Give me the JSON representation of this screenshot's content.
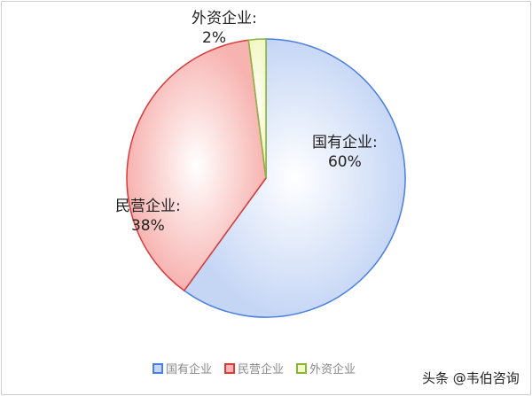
{
  "chart_data": {
    "type": "pie",
    "title": "",
    "slices": [
      {
        "label": "国有企业",
        "value": 60,
        "data_label": "国有企业:\n60%",
        "color": "#4a7fe0",
        "fill": "#c5d6f5"
      },
      {
        "label": "民营企业",
        "value": 38,
        "data_label": "民营企业:\n38%",
        "color": "#d93a3a",
        "fill": "#f7b3b0"
      },
      {
        "label": "外资企业",
        "value": 2,
        "data_label": "外资企业:\n2%",
        "color": "#8ab43a",
        "fill": "#f3f7c8"
      }
    ],
    "legend_position": "bottom"
  },
  "labels": {
    "s0_name": "国有企业:",
    "s0_pct": "60%",
    "s1_name": "民营企业:",
    "s1_pct": "38%",
    "s2_name": "外资企业:",
    "s2_pct": "2%"
  },
  "legend": [
    "国有企业",
    "民营企业",
    "外资企业"
  ],
  "watermark": "头条 @韦伯咨询"
}
